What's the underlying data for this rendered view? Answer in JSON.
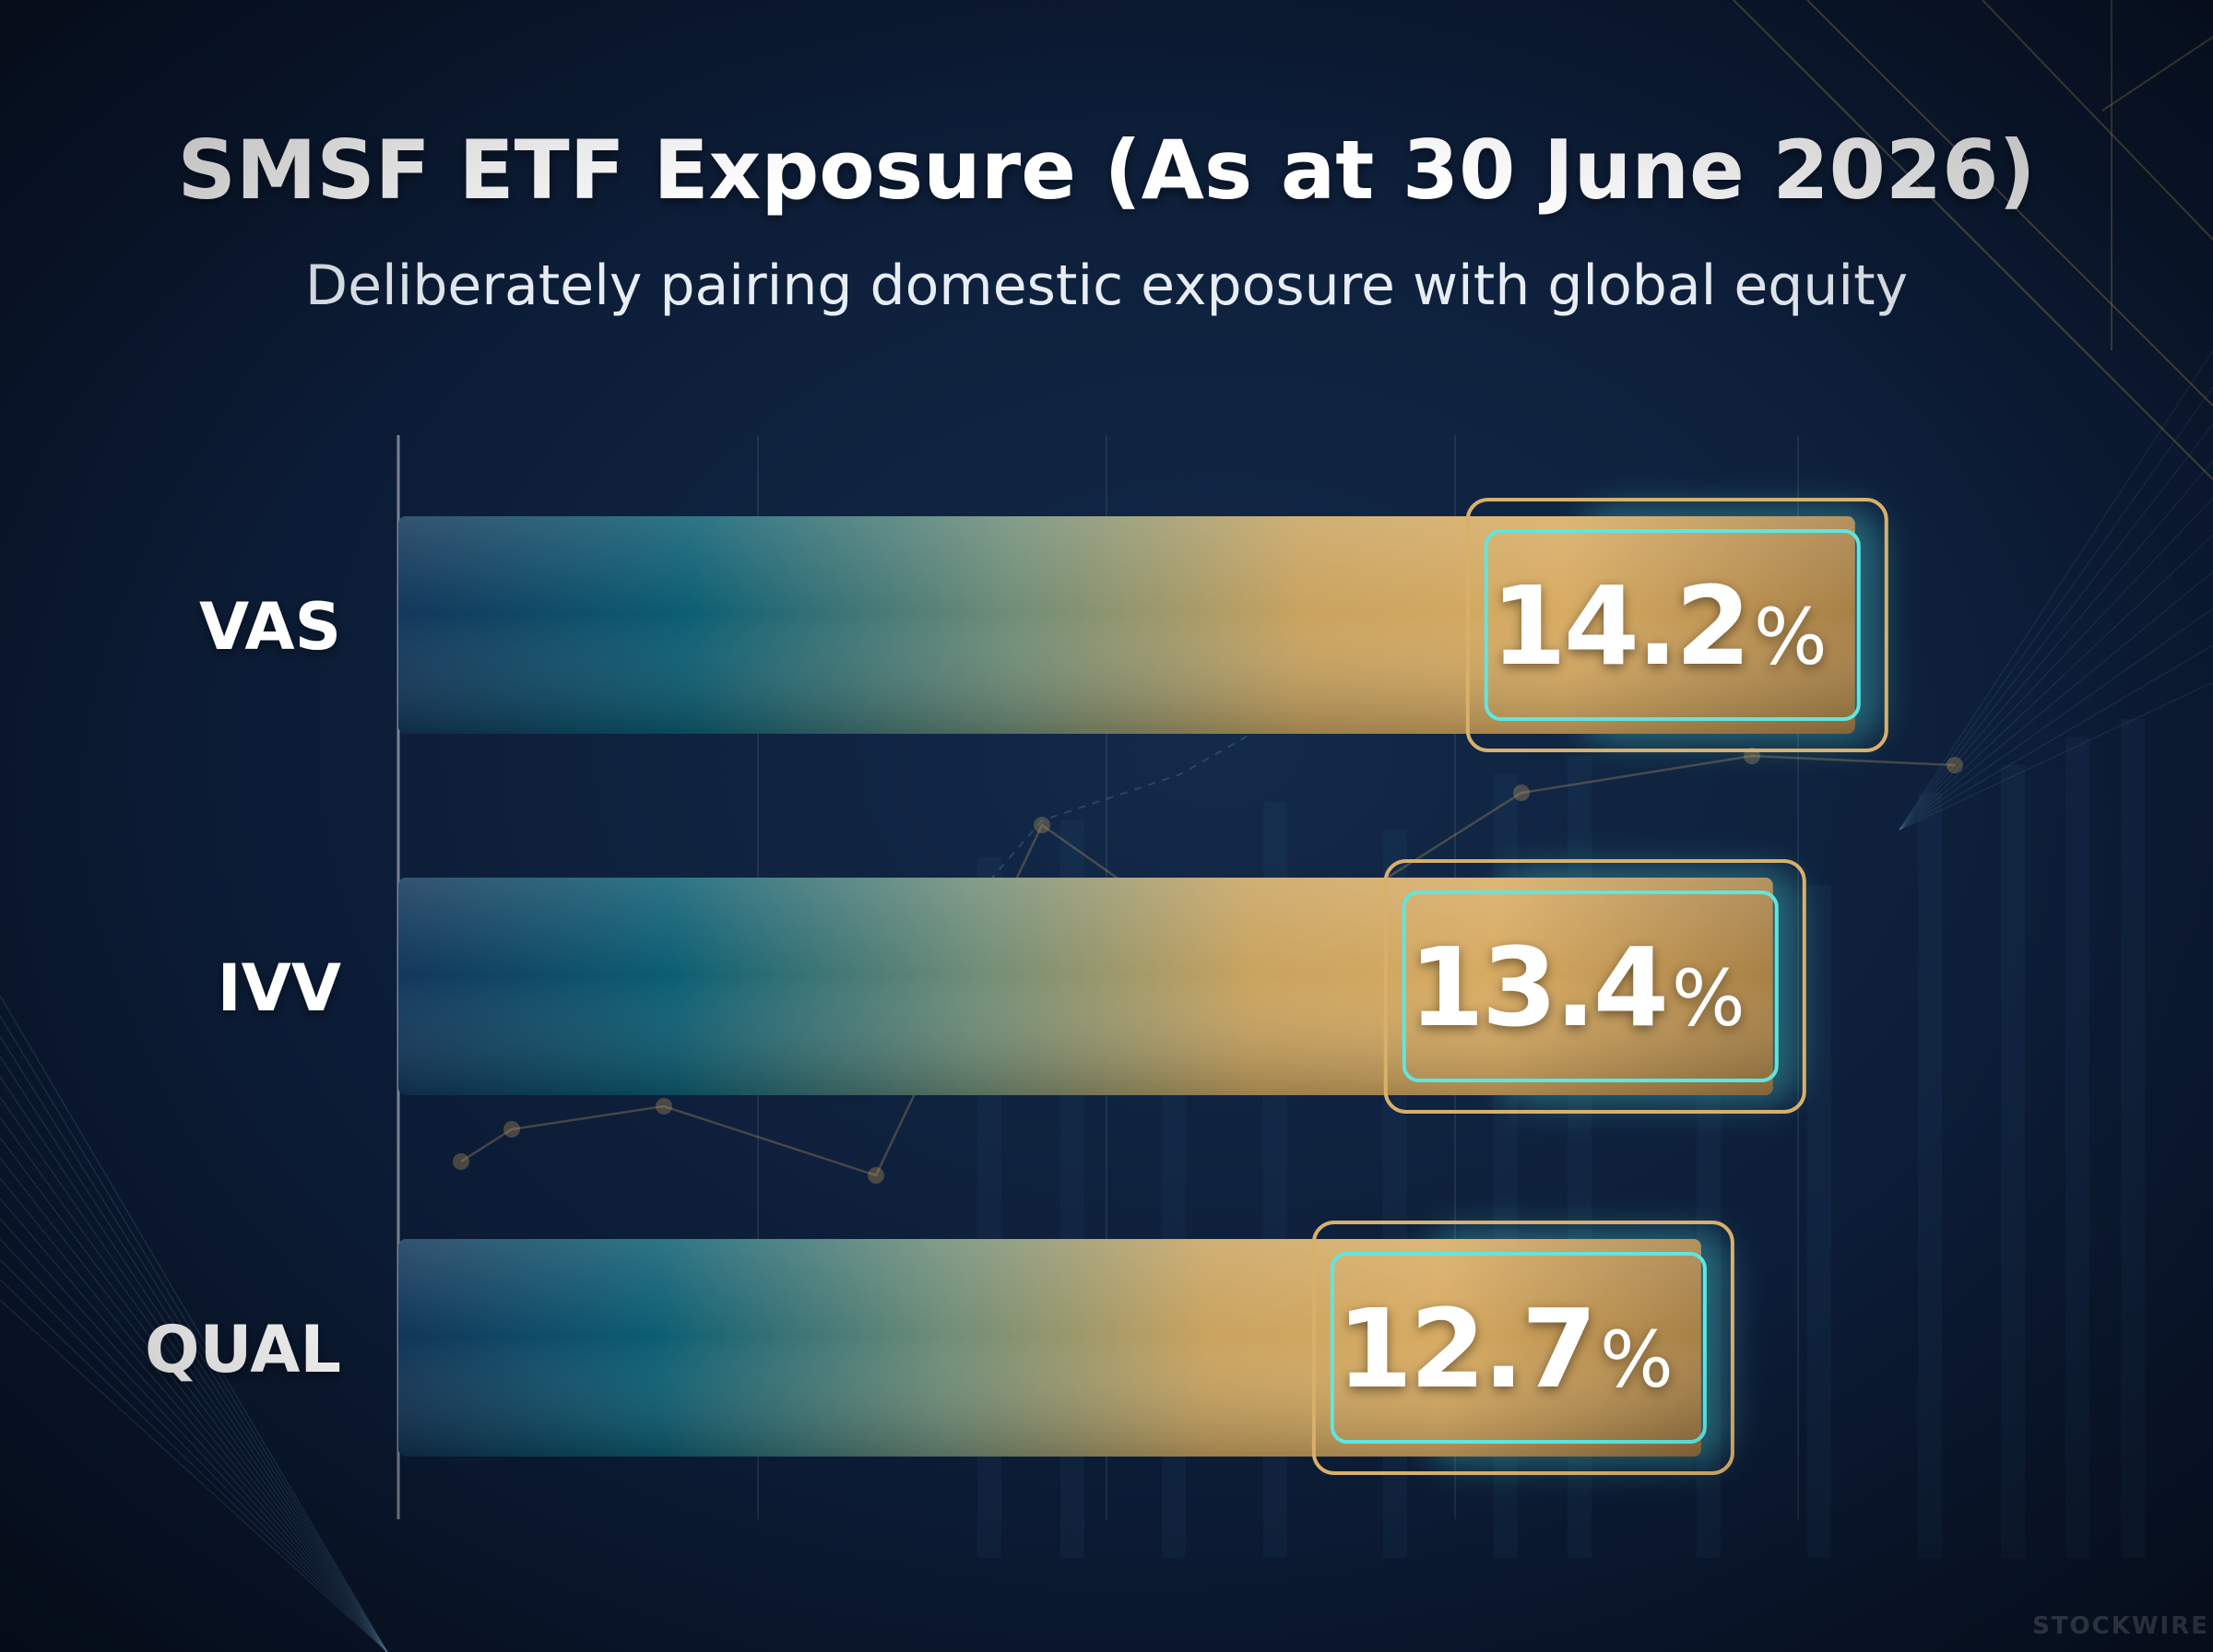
{
  "chart_data": {
    "type": "bar",
    "orientation": "horizontal",
    "title": "SMSF ETF Exposure (As at 30 June 2026)",
    "subtitle": "Deliberately pairing domestic exposure with global equity",
    "categories": [
      "VAS",
      "IVV",
      "QUAL"
    ],
    "values": [
      14.2,
      13.4,
      12.7
    ],
    "value_labels": [
      "14.2",
      "13.4",
      "12.7"
    ],
    "value_suffix": "%",
    "xlim": [
      0,
      16
    ],
    "grid": true,
    "legend": "none"
  },
  "colors": {
    "background": "#0c1c36",
    "bar_start": "#123a5e",
    "bar_mid": "#0d5f74",
    "bar_gold": "#d8a95c",
    "frame_gold": "#d9b06a",
    "frame_teal": "#5fe6e0"
  },
  "watermark": "STOCKWIRE"
}
